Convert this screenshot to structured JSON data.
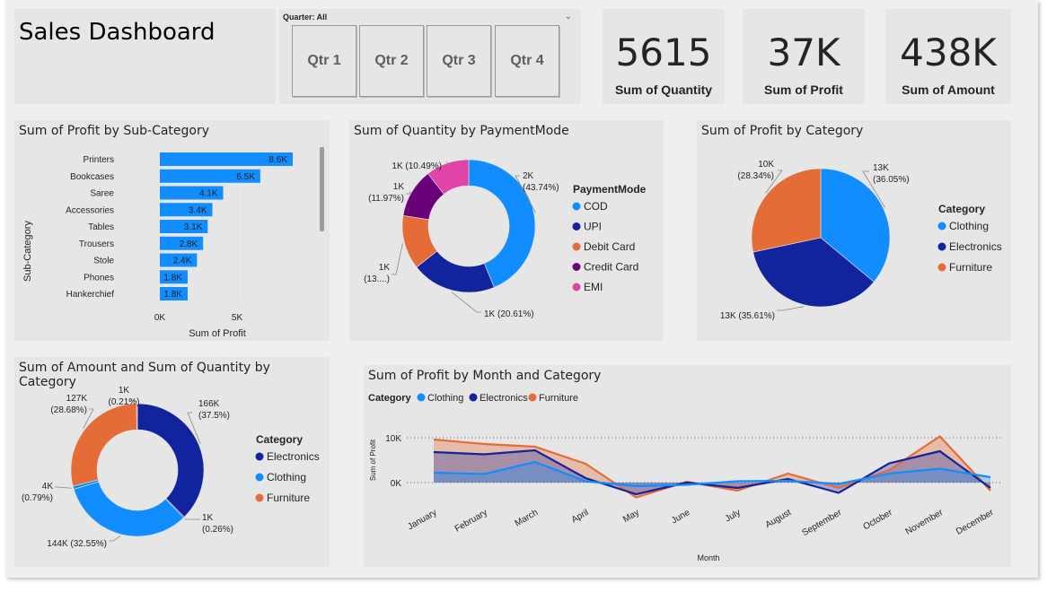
{
  "dashboard": {
    "title": "Sales Dashboard",
    "slicer": {
      "header": "Quarter: All",
      "buttons": [
        "Qtr 1",
        "Qtr 2",
        "Qtr 3",
        "Qtr 4"
      ]
    },
    "cards": [
      {
        "value": "5615",
        "label": "Sum of Quantity"
      },
      {
        "value": "37K",
        "label": "Sum of Profit"
      },
      {
        "value": "438K",
        "label": "Sum of Amount"
      }
    ]
  },
  "chart_data": [
    {
      "type": "bar",
      "title": "Sum of Profit by Sub-Category",
      "ylabel": "Sub-Category",
      "xlabel": "Sum of Profit",
      "categories": [
        "Printers",
        "Bookcases",
        "Saree",
        "Accessories",
        "Tables",
        "Trousers",
        "Stole",
        "Phones",
        "Hankerchief"
      ],
      "values": [
        8600,
        6500,
        4100,
        3400,
        3100,
        2800,
        2400,
        1800,
        1800
      ],
      "labels": [
        "8.6K",
        "6.5K",
        "4.1K",
        "3.4K",
        "3.1K",
        "2.8K",
        "2.4K",
        "1.8K",
        "1.8K"
      ],
      "xticks": [
        "0K",
        "5K"
      ],
      "xlim": [
        0,
        8600
      ],
      "color": "#118dff"
    },
    {
      "type": "pie",
      "donut": true,
      "title": "Sum of Quantity by PaymentMode",
      "legend_title": "PaymentMode",
      "slices": [
        {
          "name": "COD",
          "value": 43.74,
          "label": [
            "2K",
            "(43.74%)"
          ],
          "color": "#118dff"
        },
        {
          "name": "UPI",
          "value": 20.61,
          "label": [
            "1K (20.61%)"
          ],
          "color": "#12239e"
        },
        {
          "name": "Debit Card",
          "value": 13.19,
          "label": [
            "1K",
            "(13....)"
          ],
          "color": "#e66c37"
        },
        {
          "name": "Credit Card",
          "value": 11.97,
          "label": [
            "1K",
            "(11.97%)"
          ],
          "color": "#6b007b"
        },
        {
          "name": "EMI",
          "value": 10.49,
          "label": [
            "1K (10.49%)"
          ],
          "color": "#e044a7"
        }
      ]
    },
    {
      "type": "pie",
      "title": "Sum of Profit by Category",
      "legend_title": "Category",
      "slices": [
        {
          "name": "Clothing",
          "value": 36.05,
          "label": [
            "13K",
            "(36.05%)"
          ],
          "color": "#118dff"
        },
        {
          "name": "Electronics",
          "value": 35.61,
          "label": [
            "13K (35.61%)"
          ],
          "color": "#12239e"
        },
        {
          "name": "Furniture",
          "value": 28.34,
          "label": [
            "10K",
            "(28.34%)"
          ],
          "color": "#e66c37"
        }
      ]
    },
    {
      "type": "pie",
      "donut": true,
      "title": "Sum of Amount and Sum of Quantity by Category",
      "legend_title": "Category",
      "legend": [
        {
          "name": "Electronics",
          "color": "#12239e"
        },
        {
          "name": "Clothing",
          "color": "#118dff"
        },
        {
          "name": "Furniture",
          "color": "#e66c37"
        }
      ],
      "slices": [
        {
          "name": "Electronics",
          "value": 37.5,
          "label": [
            "166K",
            "(37.5%)"
          ],
          "color": "#12239e"
        },
        {
          "name": "Electronics",
          "value": 0.26,
          "label": [
            "1K",
            "(0.26%)"
          ],
          "color": "#12239e"
        },
        {
          "name": "Clothing",
          "value": 32.55,
          "label": [
            "144K (32.55%)"
          ],
          "color": "#118dff"
        },
        {
          "name": "Clothing",
          "value": 0.79,
          "label": [
            "4K",
            "(0.79%)"
          ],
          "color": "#118dff"
        },
        {
          "name": "Furniture",
          "value": 28.68,
          "label": [
            "127K",
            "(28.68%)"
          ],
          "color": "#e66c37"
        },
        {
          "name": "Furniture",
          "value": 0.21,
          "label": [
            "1K",
            "(0.21%)"
          ],
          "color": "#e66c37"
        }
      ]
    },
    {
      "type": "area",
      "title": "Sum of Profit by Month and Category",
      "legend_title": "Category",
      "xlabel": "Month",
      "ylabel": "Sum of Profit",
      "x": [
        "January",
        "February",
        "March",
        "April",
        "May",
        "June",
        "July",
        "August",
        "September",
        "October",
        "November",
        "December"
      ],
      "yticks": [
        "10K",
        "0K"
      ],
      "ylim": [
        -2500,
        10500
      ],
      "series": [
        {
          "name": "Clothing",
          "color": "#118dff",
          "values": [
            2200,
            1900,
            4600,
            300,
            -800,
            -500,
            300,
            400,
            -300,
            2000,
            3100,
            1200
          ]
        },
        {
          "name": "Electronics",
          "color": "#12239e",
          "values": [
            6800,
            6300,
            7200,
            1000,
            -2600,
            0,
            -1200,
            800,
            -2300,
            4300,
            7000,
            -1200
          ]
        },
        {
          "name": "Furniture",
          "color": "#e66c37",
          "values": [
            9600,
            8600,
            8000,
            4200,
            -3300,
            200,
            -1800,
            2000,
            -1200,
            2800,
            10300,
            -1800
          ]
        }
      ]
    }
  ]
}
